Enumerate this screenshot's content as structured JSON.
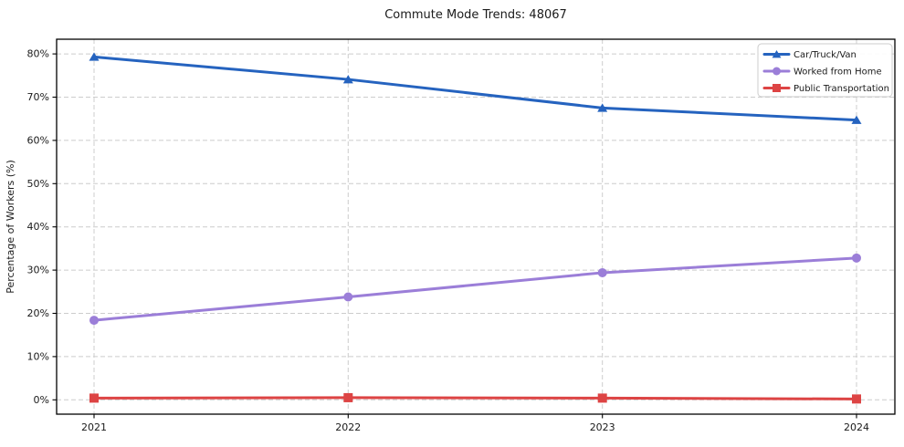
{
  "chart_data": {
    "type": "line",
    "title": "Commute Mode Trends: 48067",
    "xlabel": "",
    "ylabel": "Percentage of Workers (%)",
    "x": [
      2021,
      2022,
      2023,
      2024
    ],
    "x_tick_labels": [
      "2021",
      "2022",
      "2023",
      "2024"
    ],
    "y_ticks": [
      0,
      10,
      20,
      30,
      40,
      50,
      60,
      70,
      80
    ],
    "y_tick_labels": [
      "0%",
      "10%",
      "20%",
      "30%",
      "40%",
      "50%",
      "60%",
      "70%",
      "80%"
    ],
    "ylim": [
      -3.3,
      83.4
    ],
    "grid": true,
    "grid_style": "dashed",
    "legend_position": "upper right",
    "series": [
      {
        "name": "Car/Truck/Van",
        "values": [
          79.3,
          74.1,
          67.5,
          64.7
        ],
        "color": "#2563bf",
        "marker": "triangle"
      },
      {
        "name": "Worked from Home",
        "values": [
          18.4,
          23.8,
          29.4,
          32.8
        ],
        "color": "#9b7ed8",
        "marker": "circle"
      },
      {
        "name": "Public Transportation",
        "values": [
          0.4,
          0.5,
          0.4,
          0.2
        ],
        "color": "#dd4444",
        "marker": "square"
      }
    ],
    "colors": {
      "grid": "#cccccc",
      "spine": "#000000",
      "text": "#1a1a1a",
      "legend_border": "#cccccc",
      "legend_bg": "#ffffff"
    }
  }
}
